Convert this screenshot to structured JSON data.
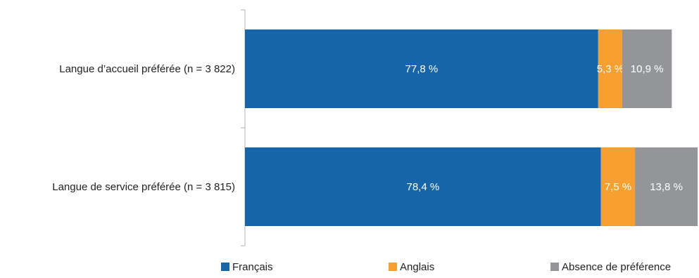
{
  "chart_data": {
    "type": "bar",
    "orientation": "horizontal",
    "stacked": true,
    "categories": [
      "Langue d’accueil préférée (n = 3 822)",
      "Langue de service préférée (n = 3 815)"
    ],
    "series": [
      {
        "name": "Français",
        "values": [
          77.8,
          78.4
        ],
        "labels": [
          "77,8 %",
          "78,4 %"
        ],
        "color": "#1765a9"
      },
      {
        "name": "Anglais",
        "values": [
          5.3,
          7.5
        ],
        "labels": [
          "5,3 %",
          "7,5 %"
        ],
        "color": "#f7a030"
      },
      {
        "name": "Absence de préférence",
        "values": [
          10.9,
          13.8
        ],
        "labels": [
          "10,9 %",
          "13,8 %"
        ],
        "color": "#939598"
      }
    ],
    "xlim": [
      0,
      100
    ],
    "grid": false,
    "legend_position": "bottom"
  }
}
